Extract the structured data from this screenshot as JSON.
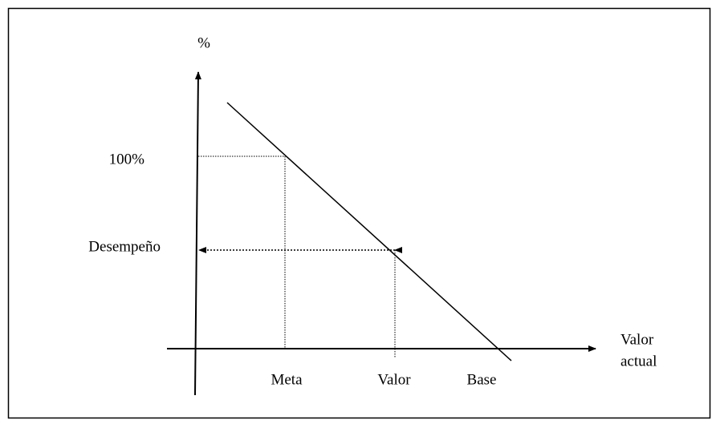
{
  "y_axis_label": "%",
  "y_labels": [
    "100%",
    "Desempeño"
  ],
  "x_labels": [
    "Meta",
    "Valor",
    "Base"
  ],
  "x_axis_label": [
    "Valor",
    "actual"
  ]
}
